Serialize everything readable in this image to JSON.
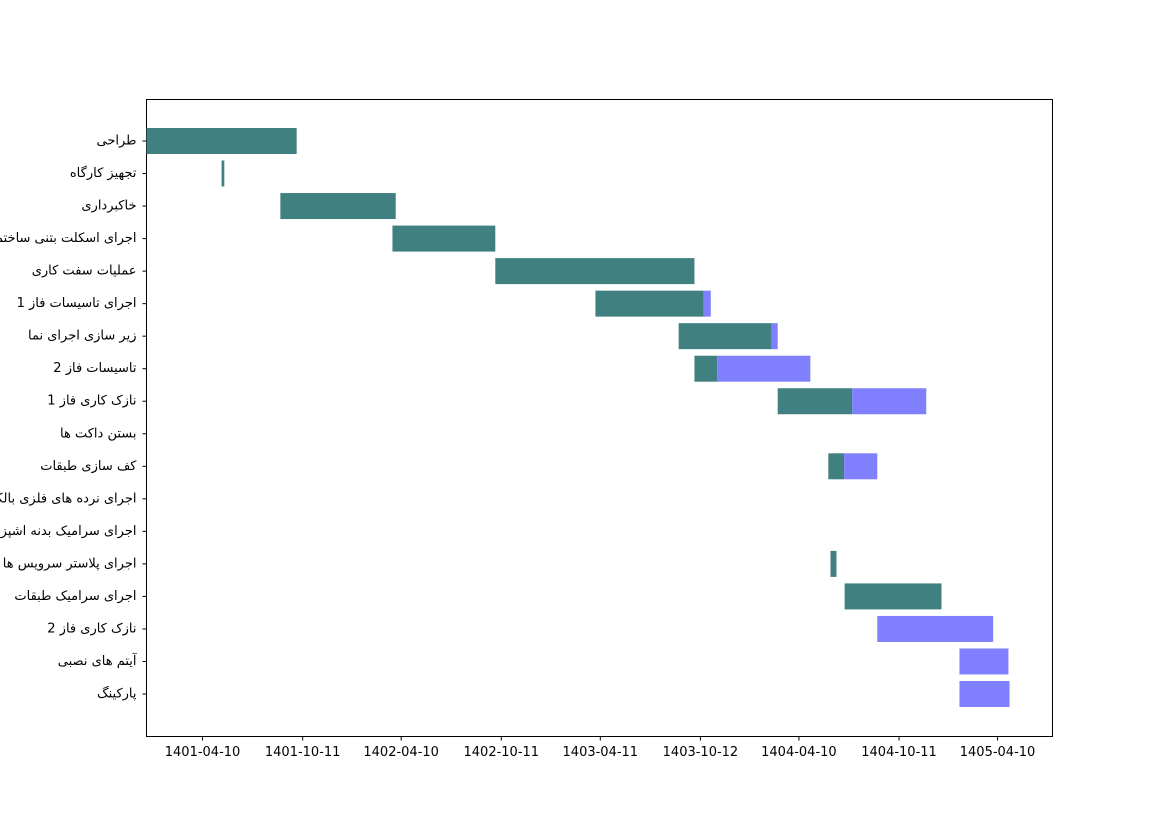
{
  "chart_data": {
    "type": "gantt",
    "categories": [
      "طراحی",
      "تجهیز کارگاه",
      "خاکبرداری",
      "اجرای اسکلت بتنی ساختمان",
      "عملیات سفت کاری",
      "اجرای تاسیسات فاز 1",
      "زیر سازی اجرای نما",
      "تاسیسات فاز 2",
      "نازک کاری فاز 1",
      "بستن داکت ها",
      "کف سازی طبقات",
      "اجرای نرده های فلزی بالکن",
      "اجرای سرامیک بدنه اشپزخانه",
      "اجرای پلاستر سرویس ها",
      "اجرای سرامیک  طبقات",
      "نازک کاری فاز 2",
      "آیتم های نصبی",
      "پارکینگ"
    ],
    "start": [
      -103,
      35,
      143,
      349,
      538,
      722,
      875,
      904,
      1057,
      null,
      1150,
      null,
      null,
      1154,
      1180,
      1240,
      1391,
      1391
    ],
    "done": {
      "color": "#408080",
      "values": [
        276,
        5,
        212,
        189,
        366,
        199,
        171,
        42,
        137,
        null,
        29,
        null,
        null,
        11,
        178,
        0,
        0,
        0
      ]
    },
    "remaining": {
      "color": "#8080ff",
      "values": [
        0,
        0,
        0,
        0,
        0,
        13,
        11,
        171,
        136,
        null,
        61,
        null,
        null,
        0,
        0,
        213,
        90,
        92
      ]
    },
    "xlim": [
      -103,
      1562
    ],
    "xticks": [
      {
        "value": 0,
        "label": "1401-04-10"
      },
      {
        "value": 184,
        "label": "1401-10-11"
      },
      {
        "value": 365,
        "label": "1402-04-10"
      },
      {
        "value": 549,
        "label": "1402-10-11"
      },
      {
        "value": 731,
        "label": "1403-04-11"
      },
      {
        "value": 915,
        "label": "1403-10-12"
      },
      {
        "value": 1096,
        "label": "1404-04-10"
      },
      {
        "value": 1280,
        "label": "1404-10-11"
      },
      {
        "value": 1461,
        "label": "1405-04-10"
      }
    ]
  }
}
